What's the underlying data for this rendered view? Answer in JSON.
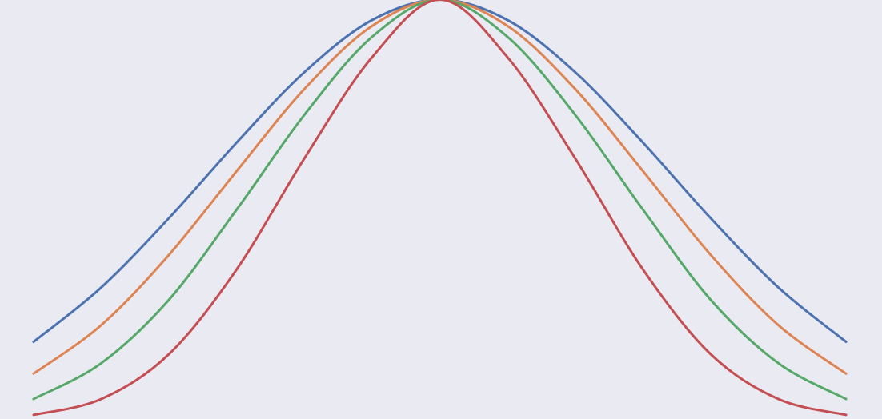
{
  "chart_data": {
    "type": "line",
    "title": "",
    "xlabel": "",
    "ylabel": "",
    "xlim": [
      -3,
      3
    ],
    "ylim": [
      0,
      1
    ],
    "grid": false,
    "legend": "none",
    "series": [
      {
        "color": "#4c72b0",
        "x": [
          -3.0,
          -2.5,
          -2.0,
          -1.5,
          -1.0,
          -0.5,
          0.0,
          0.5,
          1.0,
          1.5,
          2.0,
          2.5,
          3.0
        ],
        "y": [
          0.193,
          0.313,
          0.466,
          0.633,
          0.788,
          0.903,
          0.948,
          0.903,
          0.788,
          0.633,
          0.466,
          0.313,
          0.193
        ]
      },
      {
        "color": "#dd8452",
        "x": [
          -3.0,
          -2.5,
          -2.0,
          -1.5,
          -1.0,
          -0.5,
          0.0,
          0.5,
          1.0,
          1.5,
          2.0,
          2.5,
          3.0
        ],
        "y": [
          0.123,
          0.23,
          0.385,
          0.57,
          0.751,
          0.89,
          0.948,
          0.89,
          0.751,
          0.57,
          0.385,
          0.23,
          0.123
        ]
      },
      {
        "color": "#55a868",
        "x": [
          -3.0,
          -2.5,
          -2.0,
          -1.5,
          -1.0,
          -0.5,
          0.0,
          0.5,
          1.0,
          1.5,
          2.0,
          2.5,
          3.0
        ],
        "y": [
          0.067,
          0.146,
          0.286,
          0.485,
          0.694,
          0.866,
          0.948,
          0.866,
          0.694,
          0.485,
          0.286,
          0.146,
          0.067
        ]
      },
      {
        "color": "#c44e52",
        "x": [
          -3.0,
          -2.5,
          -2.0,
          -1.5,
          -1.0,
          -0.5,
          0.0,
          0.5,
          1.0,
          1.5,
          2.0,
          2.5,
          3.0
        ],
        "y": [
          0.032,
          0.067,
          0.166,
          0.353,
          0.598,
          0.821,
          0.948,
          0.821,
          0.598,
          0.353,
          0.166,
          0.067,
          0.032
        ]
      }
    ]
  }
}
